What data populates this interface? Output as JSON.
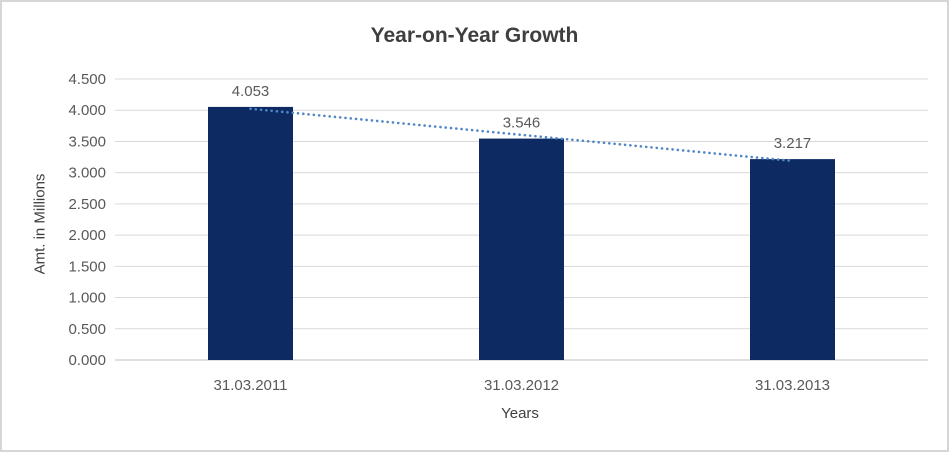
{
  "chart_data": {
    "type": "bar",
    "title": "Year-on-Year Growth",
    "xlabel": "Years",
    "ylabel": "Amt. in Millions",
    "categories": [
      "31.03.2011",
      "31.03.2012",
      "31.03.2013"
    ],
    "values": [
      4.053,
      3.546,
      3.217
    ],
    "data_labels": [
      "4.053",
      "3.546",
      "3.217"
    ],
    "ylim": [
      0,
      4.5
    ],
    "ytick_step": 0.5,
    "ytick_labels": [
      "0.000",
      "0.500",
      "1.000",
      "1.500",
      "2.000",
      "2.500",
      "3.000",
      "3.500",
      "4.000",
      "4.500"
    ],
    "grid": true,
    "legend": false,
    "trendline": {
      "type": "linear",
      "style": "dotted"
    },
    "colors": {
      "bar": "#0d2a63",
      "trendline": "#4f86c6",
      "gridline": "#d9d9d9",
      "axis_line": "#bfbfbf",
      "title_text": "#3f3f3f",
      "axis_title_text": "#404040",
      "tick_text": "#595959",
      "data_label_text": "#595959",
      "border": "#d6d6d6",
      "background": "#ffffff"
    }
  }
}
